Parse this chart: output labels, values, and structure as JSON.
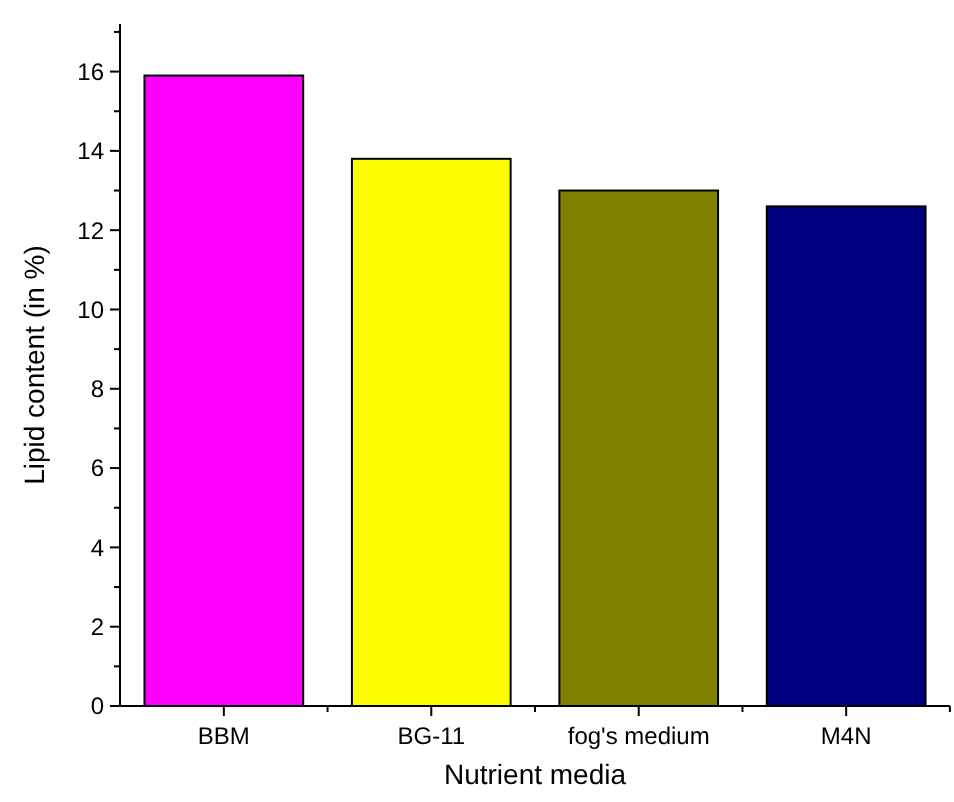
{
  "chart_data": {
    "type": "bar",
    "xlabel": "Nutrient media",
    "ylabel": "Lipid content (in %)",
    "categories": [
      "BBM",
      "BG-11",
      "fog's medium",
      "M4N"
    ],
    "values": [
      15.9,
      13.8,
      13.0,
      12.6
    ],
    "colors": [
      "#ff00ff",
      "#ffff00",
      "#808000",
      "#000080"
    ],
    "ylim": [
      0,
      17.2
    ],
    "yticks": [
      0,
      {
        "value": 1,
        "label": null
      },
      2,
      {
        "value": 3,
        "label": null
      },
      4,
      {
        "value": 5,
        "label": null
      },
      6,
      {
        "value": 7,
        "label": null
      },
      8,
      {
        "value": 9,
        "label": null
      },
      10,
      {
        "value": 11,
        "label": null
      },
      12,
      {
        "value": 13,
        "label": null
      },
      14,
      {
        "value": 15,
        "label": null
      },
      16,
      {
        "value": 17,
        "label": null
      }
    ],
    "grid": false
  }
}
